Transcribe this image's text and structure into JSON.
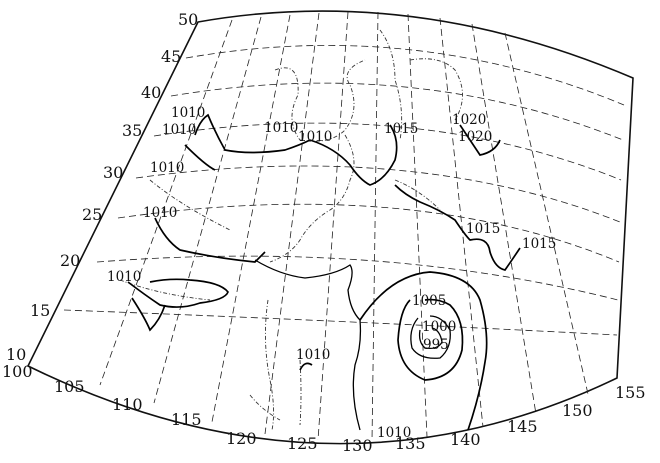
{
  "map": {
    "latitude_labels": [
      "10",
      "15",
      "20",
      "25",
      "30",
      "35",
      "40",
      "45",
      "50"
    ],
    "longitude_labels": [
      "100",
      "105",
      "110",
      "115",
      "120",
      "125",
      "130",
      "135",
      "140",
      "145",
      "150",
      "155"
    ],
    "isobar_labels": {
      "nw_1010_a": "1010",
      "nw_1010_b": "1010",
      "north_1010_a": "1010",
      "north_1010_b": "1010",
      "japan_1015": "1015",
      "east_1020_a": "1020",
      "east_1020_b": "1020",
      "west_1010_30": "1010",
      "west_1010_25": "1010",
      "west_1010_20": "1010",
      "east_1015_a": "1015",
      "east_1015_b": "1015",
      "low_1005": "1005",
      "low_1000": "1000",
      "low_995": "995",
      "south_1010_a": "1010",
      "south_1010_b": "1010"
    }
  }
}
